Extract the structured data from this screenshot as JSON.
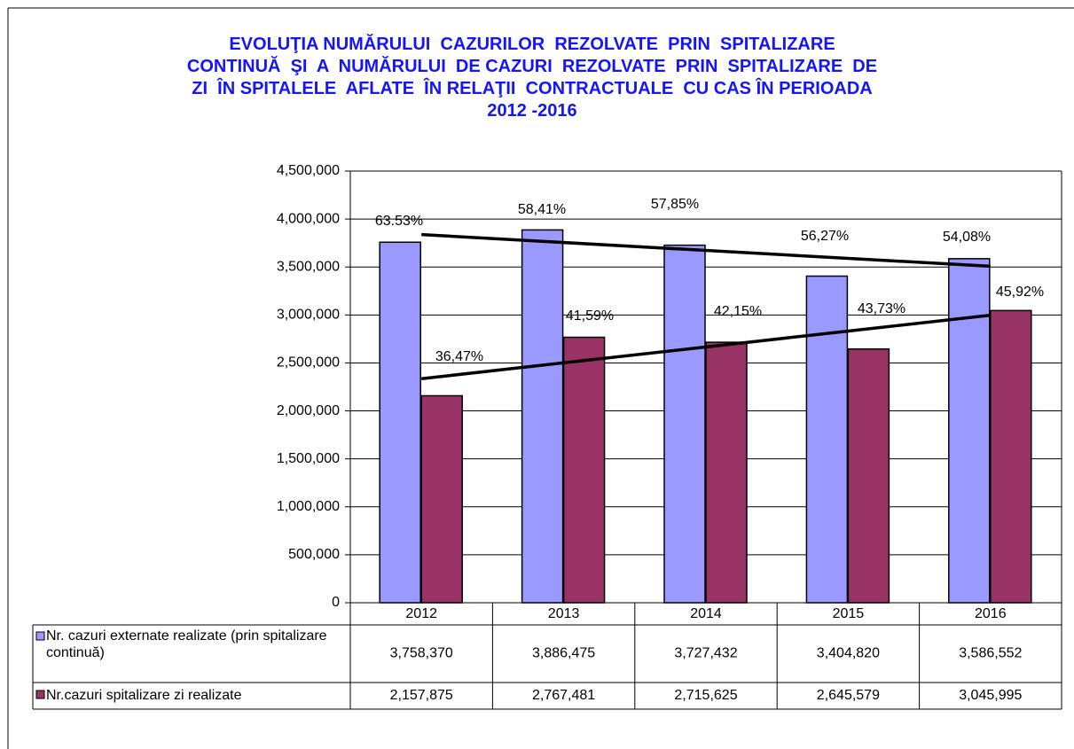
{
  "chart_data": {
    "type": "bar",
    "title": [
      "EVOLUŢIA NUMĂRULUI  CAZURILOR  REZOLVATE  PRIN  SPITALIZARE",
      "CONTINUĂ  ŞI  A  NUMĂRULUI  DE CAZURI  REZOLVATE  PRIN  SPITALIZARE  DE",
      "ZI  ÎN SPITALELE  AFLATE  ÎN RELAŢII  CONTRACTUALE  CU CAS ÎN PERIOADA",
      "2012 -2016"
    ],
    "categories": [
      "2012",
      "2013",
      "2014",
      "2015",
      "2016"
    ],
    "series": [
      {
        "name": "Nr. cazuri  externate realizate (prin spitalizare continuă)",
        "color": "#9999ff",
        "values": [
          3758370,
          3886475,
          3727432,
          3404820,
          3586552
        ],
        "value_labels": [
          "3,758,370",
          "3,886,475",
          "3,727,432",
          "3,404,820",
          "3,586,552"
        ],
        "annotations": [
          "63.53%",
          "58,41%",
          "57,85%",
          "56,27%",
          "54,08%"
        ]
      },
      {
        "name": "Nr.cazuri spitalizare zi realizate",
        "color": "#993366",
        "values": [
          2157875,
          2767481,
          2715625,
          2645579,
          3045995
        ],
        "value_labels": [
          "2,157,875",
          "2,767,481",
          "2,715,625",
          "2,645,579",
          "3,045,995"
        ],
        "annotations": [
          "36,47%",
          "41,59%",
          "42,15%",
          "43,73%",
          "45,92%"
        ]
      }
    ],
    "trendline": "linear",
    "ylim": [
      0,
      4500000
    ],
    "yticks": [
      0,
      {
        "value": 500000,
        "label": "500,000"
      },
      {
        "value": 1000000,
        "label": "1,000,000"
      },
      {
        "value": 1500000,
        "label": "1,500,000"
      },
      {
        "value": 2000000,
        "label": "2,000,000"
      },
      {
        "value": 2500000,
        "label": "2,500,000"
      },
      {
        "value": 3000000,
        "label": "3,000,000"
      },
      {
        "value": 3500000,
        "label": "3,500,000"
      },
      {
        "value": 4000000,
        "label": "4,000,000"
      },
      {
        "value": 4500000,
        "label": "4,500,000"
      }
    ],
    "grid": true,
    "data_table": true
  }
}
